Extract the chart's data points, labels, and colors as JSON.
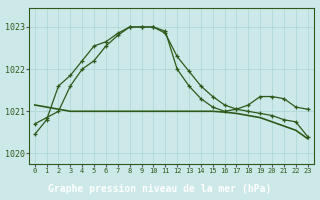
{
  "title": "Graphe pression niveau de la mer (hPa)",
  "background_color": "#cce8e8",
  "label_bg": "#2d5a2d",
  "label_fg": "#ffffff",
  "grid_color": "#b0d8d8",
  "line_color": "#2d5a1a",
  "ylim": [
    1019.75,
    1023.45
  ],
  "yticks": [
    1020,
    1021,
    1022,
    1023
  ],
  "xlim": [
    -0.5,
    23.5
  ],
  "xticks": [
    0,
    1,
    2,
    3,
    4,
    5,
    6,
    7,
    8,
    9,
    10,
    11,
    12,
    13,
    14,
    15,
    16,
    17,
    18,
    19,
    20,
    21,
    22,
    23
  ],
  "series1_x": [
    0,
    1,
    2,
    3,
    4,
    5,
    6,
    7,
    8,
    9,
    10,
    11,
    12,
    13,
    14,
    15,
    16,
    17,
    18,
    19,
    20,
    21,
    22,
    23
  ],
  "series1_y": [
    1020.7,
    1020.85,
    1021.0,
    1021.6,
    1022.0,
    1022.2,
    1022.55,
    1022.8,
    1023.0,
    1023.0,
    1023.0,
    1022.85,
    1022.3,
    1021.95,
    1021.6,
    1021.35,
    1021.15,
    1021.05,
    1021.0,
    1020.95,
    1020.9,
    1020.8,
    1020.75,
    1020.4
  ],
  "series2_x": [
    0,
    1,
    2,
    3,
    4,
    5,
    6,
    7,
    8,
    9,
    10,
    11,
    12,
    13,
    14,
    15,
    16,
    17,
    18,
    19,
    20,
    21,
    22,
    23
  ],
  "series2_y": [
    1020.45,
    1020.8,
    1021.6,
    1021.85,
    1022.2,
    1022.55,
    1022.65,
    1022.85,
    1023.0,
    1023.0,
    1023.0,
    1022.9,
    1022.0,
    1021.6,
    1021.3,
    1021.1,
    1021.0,
    1021.05,
    1021.15,
    1021.35,
    1021.35,
    1021.3,
    1021.1,
    1021.05
  ],
  "series3_x": [
    0,
    1,
    2,
    3,
    4,
    5,
    6,
    7,
    8,
    9,
    10,
    11,
    12,
    13,
    14,
    15,
    16,
    17,
    18,
    19,
    20,
    21,
    22,
    23
  ],
  "series3_y": [
    1021.15,
    1021.1,
    1021.05,
    1021.0,
    1021.0,
    1021.0,
    1021.0,
    1021.0,
    1021.0,
    1021.0,
    1021.0,
    1021.0,
    1021.0,
    1021.0,
    1021.0,
    1021.0,
    1020.98,
    1020.95,
    1020.9,
    1020.85,
    1020.75,
    1020.65,
    1020.55,
    1020.35
  ]
}
